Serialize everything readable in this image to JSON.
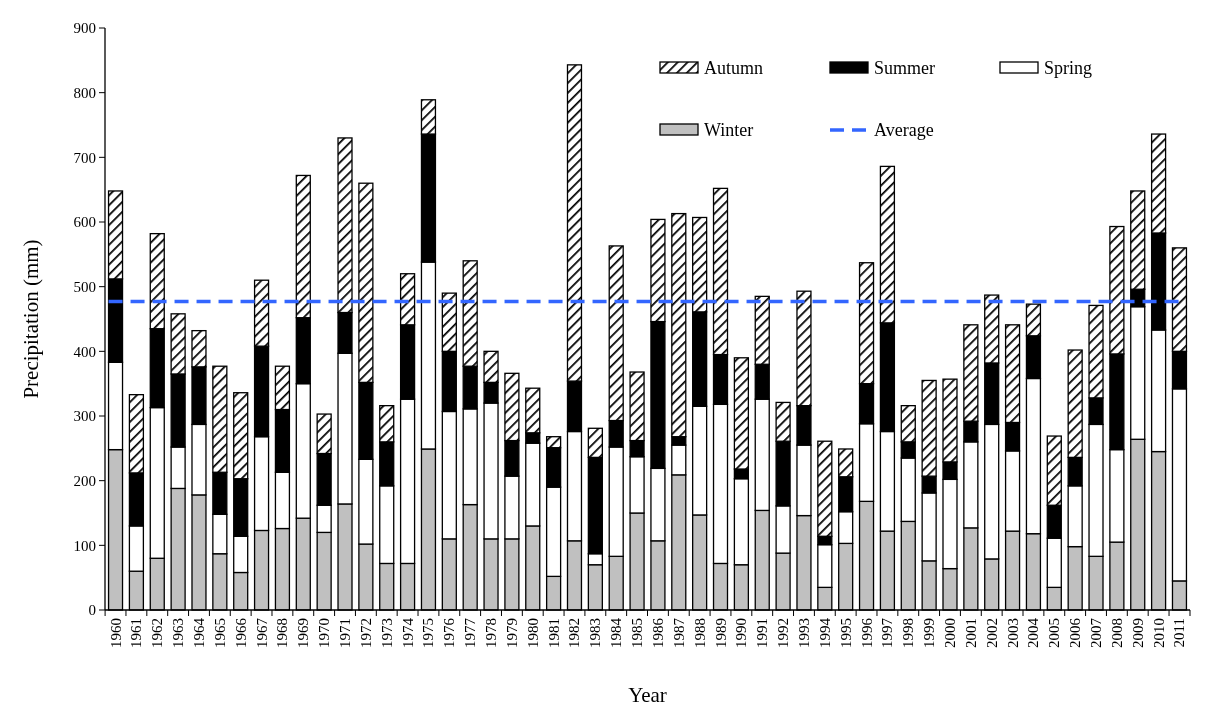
{
  "chart_data": {
    "type": "bar",
    "stacked": true,
    "xlabel": "Year",
    "ylabel": "Precipitation (mm)",
    "categories": [
      "1960",
      "1961",
      "1962",
      "1963",
      "1964",
      "1965",
      "1966",
      "1967",
      "1968",
      "1969",
      "1970",
      "1971",
      "1972",
      "1973",
      "1974",
      "1975",
      "1976",
      "1977",
      "1978",
      "1979",
      "1980",
      "1981",
      "1982",
      "1983",
      "1984",
      "1985",
      "1986",
      "1987",
      "1988",
      "1989",
      "1990",
      "1991",
      "1992",
      "1993",
      "1994",
      "1995",
      "1996",
      "1997",
      "1998",
      "1999",
      "2000",
      "2001",
      "2002",
      "2003",
      "2004",
      "2005",
      "2006",
      "2007",
      "2008",
      "2009",
      "2010",
      "2011"
    ],
    "series": [
      {
        "name": "Winter",
        "color": "#c0c0c0",
        "values": [
          248,
          60,
          80,
          188,
          178,
          87,
          58,
          123,
          126,
          142,
          120,
          164,
          102,
          72,
          72,
          249,
          110,
          163,
          110,
          110,
          130,
          52,
          107,
          70,
          83,
          150,
          107,
          209,
          147,
          72,
          70,
          154,
          88,
          146,
          35,
          103,
          168,
          122,
          137,
          76,
          64,
          127,
          79,
          122,
          118,
          35,
          98,
          83,
          105,
          264,
          245,
          45
        ]
      },
      {
        "name": "Spring",
        "color": "#ffffff",
        "values": [
          135,
          70,
          233,
          64,
          109,
          61,
          56,
          145,
          87,
          208,
          42,
          233,
          131,
          120,
          254,
          289,
          197,
          148,
          210,
          97,
          128,
          138,
          169,
          17,
          169,
          87,
          112,
          46,
          168,
          246,
          133,
          172,
          73,
          109,
          66,
          49,
          120,
          154,
          98,
          105,
          138,
          133,
          208,
          124,
          240,
          76,
          94,
          204,
          143,
          205,
          188,
          297
        ]
      },
      {
        "name": "Summer",
        "color": "#000000",
        "values": [
          129,
          82,
          122,
          113,
          89,
          65,
          89,
          140,
          97,
          102,
          80,
          63,
          119,
          68,
          115,
          198,
          93,
          66,
          32,
          55,
          16,
          61,
          78,
          149,
          41,
          25,
          227,
          13,
          146,
          77,
          15,
          54,
          100,
          61,
          13,
          54,
          62,
          168,
          25,
          26,
          27,
          32,
          95,
          44,
          66,
          51,
          44,
          41,
          148,
          27,
          150,
          58
        ]
      },
      {
        "name": "Autumn",
        "color": "#000000",
        "values": [
          136,
          121,
          147,
          93,
          56,
          164,
          133,
          102,
          67,
          220,
          61,
          270,
          308,
          56,
          79,
          53,
          90,
          163,
          48,
          104,
          69,
          17,
          489,
          45,
          270,
          106,
          158,
          345,
          146,
          257,
          172,
          105,
          60,
          177,
          147,
          43,
          187,
          242,
          56,
          148,
          128,
          149,
          105,
          151,
          49,
          107,
          166,
          143,
          197,
          152,
          153,
          160
        ]
      }
    ],
    "ylim": [
      0,
      900
    ],
    "yticks": [
      0,
      100,
      200,
      300,
      400,
      500,
      600,
      700,
      800,
      900
    ],
    "ref_lines": [
      {
        "axis": "y",
        "value": 477,
        "label": "Average",
        "color": "#3366ff",
        "line_style": "dashed"
      }
    ],
    "legend": "top right",
    "grid": false
  }
}
